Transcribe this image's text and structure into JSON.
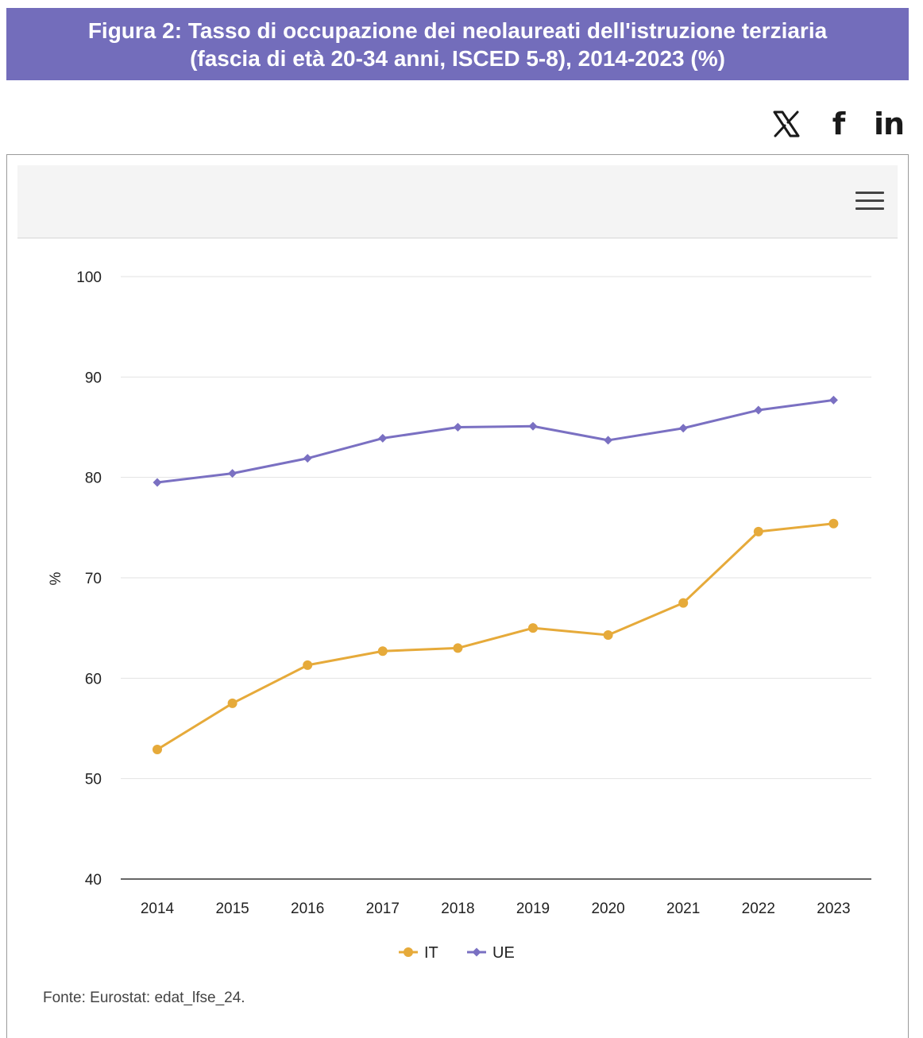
{
  "header": {
    "title_line1": "Figura 2: Tasso di occupazione dei neolaureati dell'istruzione terziaria",
    "title_line2": "(fascia di età 20-34 anni, ISCED 5-8), 2014-2023 (%)",
    "background_color": "#736dbb"
  },
  "share": {
    "x_icon": "x-twitter-icon",
    "facebook_label": "f",
    "linkedin_label": "in"
  },
  "toolbar": {
    "menu_icon": "hamburger-menu-icon"
  },
  "chart_data": {
    "type": "line",
    "x": [
      "2014",
      "2015",
      "2016",
      "2017",
      "2018",
      "2019",
      "2020",
      "2021",
      "2022",
      "2023"
    ],
    "ylabel": "%",
    "ylim": [
      40,
      100
    ],
    "yticks": [
      "40",
      "50",
      "60",
      "70",
      "80",
      "90",
      "100"
    ],
    "grid": true,
    "legend_position": "bottom-center",
    "series": [
      {
        "name": "IT",
        "color": "#e6aa3a",
        "marker": "circle",
        "values": [
          52.9,
          57.5,
          61.3,
          62.7,
          63.0,
          65.0,
          64.3,
          67.5,
          74.6,
          75.4
        ]
      },
      {
        "name": "UE",
        "color": "#7a70c2",
        "marker": "diamond",
        "values": [
          79.5,
          80.4,
          81.9,
          83.9,
          85.0,
          85.1,
          83.7,
          84.9,
          86.7,
          87.7
        ]
      }
    ]
  },
  "footer": {
    "source": "Fonte: Eurostat: edat_lfse_24."
  }
}
